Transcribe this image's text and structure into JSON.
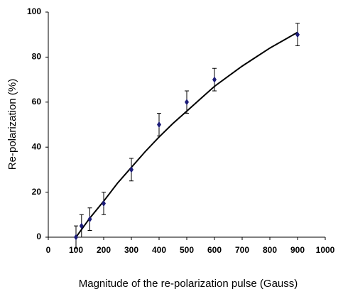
{
  "chart_data": {
    "type": "scatter",
    "xlabel": "Magnitude of the re-polarization pulse (Gauss)",
    "ylabel": "Re-polarization (%)",
    "xlim": [
      0,
      1000
    ],
    "xticks": [
      0,
      100,
      200,
      300,
      400,
      500,
      600,
      700,
      800,
      900,
      1000
    ],
    "ylim": [
      0,
      100
    ],
    "yticks": [
      0,
      20,
      40,
      60,
      80,
      100
    ],
    "series": [
      {
        "color": "#1c1c78",
        "x": [
          100,
          120,
          150,
          200,
          300,
          400,
          500,
          600,
          900
        ],
        "values": [
          0,
          5,
          8,
          15,
          30,
          50,
          60,
          70,
          90
        ],
        "errors": [
          5,
          5,
          5,
          5,
          5,
          5,
          5,
          5,
          5
        ]
      }
    ],
    "trendline": {
      "color": "#000000",
      "x": [
        100,
        150,
        200,
        250,
        300,
        350,
        400,
        450,
        500,
        550,
        600,
        650,
        700,
        750,
        800,
        850,
        900
      ],
      "values": [
        0,
        8.5,
        16,
        24,
        31,
        38,
        44.5,
        50.5,
        56,
        61.5,
        67,
        71.5,
        76,
        80,
        84,
        87.5,
        91
      ]
    }
  }
}
